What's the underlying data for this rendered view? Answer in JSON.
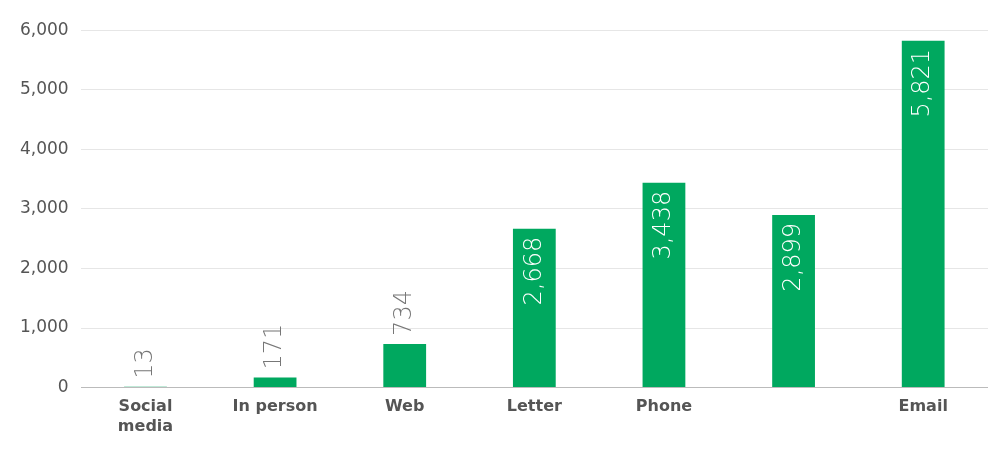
{
  "chart_data": {
    "type": "bar",
    "categories": [
      "Social media",
      "In person",
      "Web",
      "Letter",
      "Phone",
      null,
      "Email"
    ],
    "values": [
      13,
      171,
      734,
      2668,
      3438,
      2899,
      5821
    ],
    "value_labels": [
      "13",
      "171",
      "734",
      "2,668",
      "3,438",
      "2,899",
      "5,821"
    ],
    "color": "#00a85f",
    "ylim": [
      0,
      6000
    ],
    "yticks": [
      {
        "value": 0,
        "label": "0"
      },
      {
        "value": 1000,
        "label": "1,000"
      },
      {
        "value": 2000,
        "label": "2,000"
      },
      {
        "value": 3000,
        "label": "3,000"
      },
      {
        "value": 4000,
        "label": "4,000"
      },
      {
        "value": 5000,
        "label": "5,000"
      },
      {
        "value": 6000,
        "label": "6,000"
      }
    ],
    "grid": "y"
  }
}
